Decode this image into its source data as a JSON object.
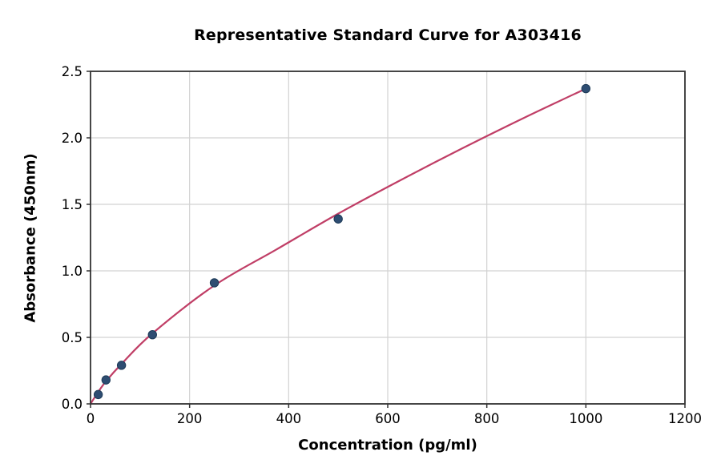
{
  "chart_data": {
    "type": "scatter",
    "title": "Representative Standard Curve for A303416",
    "xlabel": "Concentration (pg/ml)",
    "ylabel": "Absorbance (450nm)",
    "xlim": [
      0,
      1200
    ],
    "ylim": [
      0,
      2.5
    ],
    "x_ticks": [
      0,
      200,
      400,
      600,
      800,
      1000,
      1200
    ],
    "y_ticks": [
      0.0,
      0.5,
      1.0,
      1.5,
      2.0,
      2.5
    ],
    "grid": true,
    "legend": "none",
    "series": [
      {
        "name": "standard-points",
        "type": "scatter",
        "x": [
          15.6,
          31.2,
          62.5,
          125,
          250,
          500,
          1000
        ],
        "y": [
          0.07,
          0.18,
          0.29,
          0.52,
          0.91,
          1.39,
          2.37
        ]
      },
      {
        "name": "fitted-curve",
        "type": "line",
        "x": [
          0,
          15.6,
          31.2,
          62.5,
          125,
          250,
          375,
          500,
          625,
          750,
          875,
          1000
        ],
        "y": [
          0.0,
          0.09,
          0.17,
          0.3,
          0.53,
          0.89,
          1.16,
          1.43,
          1.68,
          1.92,
          2.15,
          2.37
        ]
      }
    ],
    "colors": {
      "curve_line": "#c03e66",
      "marker_fill": "#2e4d72",
      "marker_edge": "#1d3a57",
      "grid_line": "#d2d2d2",
      "spine": "#333333",
      "text": "#000000",
      "background": "#ffffff"
    }
  }
}
